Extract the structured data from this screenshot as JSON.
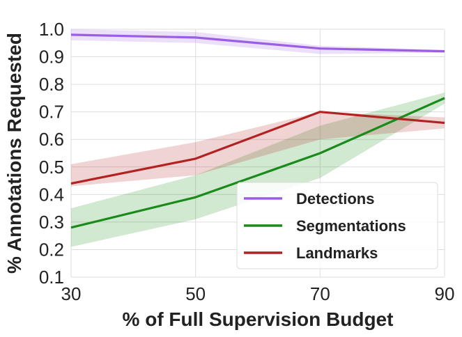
{
  "chart_data": {
    "type": "line",
    "xlabel": "% of Full Supervision Budget",
    "ylabel": "% Annotations Requested",
    "xlim": [
      30,
      90
    ],
    "ylim": [
      0.1,
      1.0
    ],
    "x_ticks": [
      30,
      50,
      70,
      90
    ],
    "x_tick_labels": [
      "30",
      "50",
      "70",
      "90"
    ],
    "y_ticks": [
      0.1,
      0.2,
      0.3,
      0.4,
      0.5,
      0.6,
      0.7,
      0.8,
      0.9,
      1.0
    ],
    "y_tick_labels": [
      "0.1",
      "0.2",
      "0.3",
      "0.4",
      "0.5",
      "0.6",
      "0.7",
      "0.8",
      "0.9",
      "1.0"
    ],
    "grid": true,
    "legend_position": "lower-right",
    "x": [
      30,
      50,
      70,
      90
    ],
    "series": [
      {
        "name": "Detections",
        "color": "#9b5de5",
        "values": [
          0.98,
          0.97,
          0.93,
          0.92
        ],
        "band_upper": [
          1.0,
          0.99,
          0.94,
          0.925
        ],
        "band_lower": [
          0.96,
          0.95,
          0.91,
          0.915
        ]
      },
      {
        "name": "Segmentations",
        "color": "#1a8a1a",
        "values": [
          0.28,
          0.39,
          0.55,
          0.75
        ],
        "band_upper": [
          0.35,
          0.47,
          0.65,
          0.77
        ],
        "band_lower": [
          0.21,
          0.31,
          0.46,
          0.73
        ]
      },
      {
        "name": "Landmarks",
        "color": "#b22222",
        "values": [
          0.44,
          0.53,
          0.7,
          0.66
        ],
        "band_upper": [
          0.51,
          0.59,
          0.7,
          0.68
        ],
        "band_lower": [
          0.43,
          0.47,
          0.6,
          0.64
        ]
      }
    ]
  }
}
